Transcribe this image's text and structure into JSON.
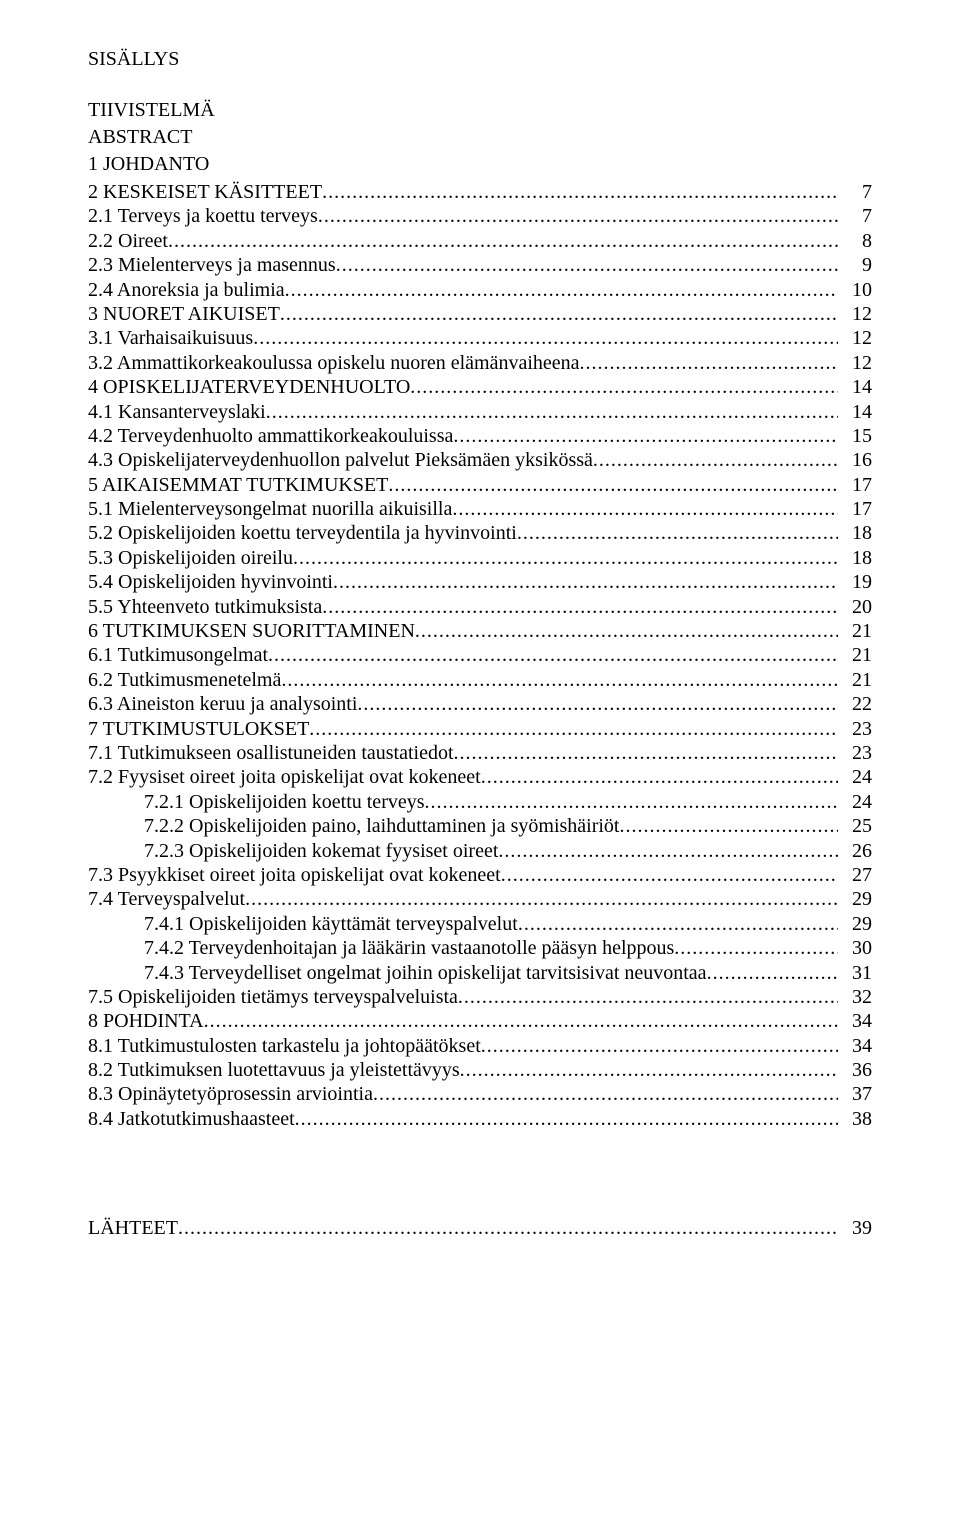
{
  "heading1": "SISÄLLYS",
  "heading2": "TIIVISTELMÄ",
  "heading3": "ABSTRACT",
  "heading4": "1 JOHDANTO",
  "toc": [
    {
      "indent": 0,
      "label": "2 KESKEISET KÄSITTEET",
      "sep": "...",
      "page": "7"
    },
    {
      "indent": 0,
      "label": "2.1 Terveys ja koettu terveys",
      "sep": "…",
      "page": "7"
    },
    {
      "indent": 0,
      "label": "2.2 Oireet",
      "sep": "...…",
      "page": "8"
    },
    {
      "indent": 0,
      "label": "2.3 Mielenterveys ja masennus",
      "sep": ".",
      "page": "9"
    },
    {
      "indent": 0,
      "label": "2.4 Anoreksia ja bulimia",
      "sep": "...",
      "page": "10"
    },
    {
      "indent": 0,
      "label": "3 NUORET AIKUISET",
      "sep": "...",
      "page": "12"
    },
    {
      "indent": 0,
      "label": "3.1 Varhaisaikuisuus",
      "sep": "...",
      "page": "12"
    },
    {
      "indent": 0,
      "label": "3.2 Ammattikorkeakoulussa opiskelu nuoren elämänvaiheena",
      "sep": "…",
      "page": "12"
    },
    {
      "indent": 0,
      "label": "4 OPISKELIJATERVEYDENHUOLTO",
      "sep": "…",
      "page": "14"
    },
    {
      "indent": 0,
      "label": "4.1 Kansanterveyslaki",
      "sep": "...",
      "page": "14"
    },
    {
      "indent": 0,
      "label": "4.2 Terveydenhuolto ammattikorkeakouluissa",
      "sep": "..",
      "page": "15"
    },
    {
      "indent": 0,
      "label": "4.3 Opiskelijaterveydenhuollon palvelut Pieksämäen yksikössä",
      "sep": "..",
      "page": "16"
    },
    {
      "indent": 0,
      "label": "5 AIKAISEMMAT TUTKIMUKSET",
      "sep": ".",
      "page": "17"
    },
    {
      "indent": 0,
      "label": "5.1 Mielenterveysongelmat nuorilla aikuisilla",
      "sep": "..",
      "page": "17"
    },
    {
      "indent": 0,
      "label": "5.2 Opiskelijoiden koettu terveydentila ja hyvinvointi",
      "sep": "..",
      "page": "18"
    },
    {
      "indent": 0,
      "label": "5.3 Opiskelijoiden oireilu",
      "sep": "..",
      "page": "18"
    },
    {
      "indent": 0,
      "label": "5.4 Opiskelijoiden hyvinvointi",
      "sep": "..",
      "page": "19"
    },
    {
      "indent": 0,
      "label": "5.5 Yhteenveto tutkimuksista",
      "sep": "...",
      "page": "20"
    },
    {
      "indent": 0,
      "label": "6 TUTKIMUKSEN SUORITTAMINEN",
      "sep": "...",
      "page": "21"
    },
    {
      "indent": 0,
      "label": "6.1 Tutkimusongelmat",
      "sep": "…",
      "page": "21"
    },
    {
      "indent": 0,
      "label": "6.2 Tutkimusmenetelmä",
      "sep": ".",
      "page": "21"
    },
    {
      "indent": 0,
      "label": "6.3 Aineiston keruu ja analysointi",
      "sep": ".",
      "page": "22"
    },
    {
      "indent": 0,
      "label": "7 TUTKIMUSTULOKSET",
      "sep": "....",
      "page": "23"
    },
    {
      "indent": 0,
      "label": "7.1 Tutkimukseen osallistuneiden taustatiedot",
      "sep": "....",
      "page": "23"
    },
    {
      "indent": 0,
      "label": "7.2 Fyysiset oireet joita opiskelijat ovat kokeneet",
      "sep": ".",
      "page": "24"
    },
    {
      "indent": 1,
      "label": "7.2.1 Opiskelijoiden koettu terveys",
      "sep": ".",
      "page": "24"
    },
    {
      "indent": 1,
      "label": "7.2.2 Opiskelijoiden paino, laihduttaminen ja syömishäiriöt",
      "sep": "....",
      "page": "25"
    },
    {
      "indent": 1,
      "label": "7.2.3 Opiskelijoiden kokemat fyysiset oireet",
      "sep": "....",
      "page": "26"
    },
    {
      "indent": 0,
      "label": "7.3 Psyykkiset oireet joita opiskelijat ovat kokeneet",
      "sep": "…",
      "page": "27"
    },
    {
      "indent": 0,
      "label": "7.4 Terveyspalvelut",
      "sep": "..",
      "page": "29"
    },
    {
      "indent": 1,
      "label": "7.4.1 Opiskelijoiden käyttämät terveyspalvelut",
      "sep": ".",
      "page": "29"
    },
    {
      "indent": 1,
      "label": "7.4.2 Terveydenhoitajan ja lääkärin vastaanotolle pääsyn helppous",
      "sep": "..",
      "page": "30"
    },
    {
      "indent": 1,
      "label": "7.4.3 Terveydelliset ongelmat joihin opiskelijat tarvitsisivat neuvontaa",
      "sep": "",
      "page": "31"
    },
    {
      "indent": 0,
      "label": "7.5 Opiskelijoiden tietämys terveyspalveluista",
      "sep": "…",
      "page": "32"
    },
    {
      "indent": 0,
      "label": "8 POHDINTA",
      "sep": "…",
      "page": "34"
    },
    {
      "indent": 0,
      "label": "8.1 Tutkimustulosten tarkastelu ja johtopäätökset",
      "sep": "….",
      "page": "34"
    },
    {
      "indent": 0,
      "label": "8.2 Tutkimuksen luotettavuus ja yleistettävyys",
      "sep": "…..",
      "page": "36"
    },
    {
      "indent": 0,
      "label": "8.3 Opinäytetyöprosessin arviointia",
      "sep": "….",
      "page": "37"
    },
    {
      "indent": 0,
      "label": "8.4 Jatkotutkimushaasteet",
      "sep": "….",
      "page": "38"
    }
  ],
  "footer": {
    "label": "LÄHTEET",
    "page": "39"
  }
}
